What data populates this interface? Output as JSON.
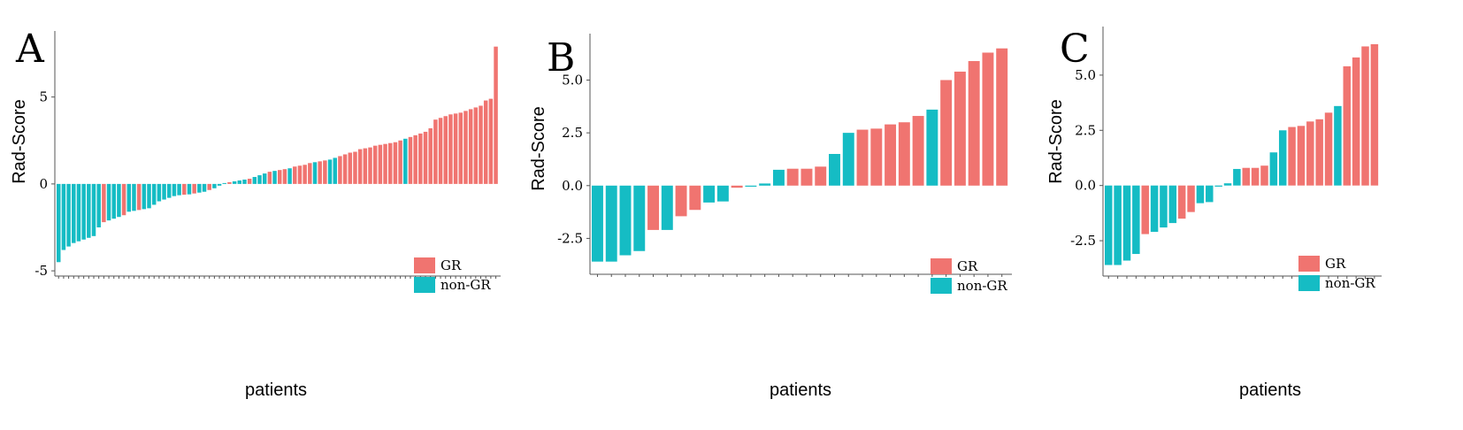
{
  "colors": {
    "GR": "#f07470",
    "non-GR": "#15bcc4"
  },
  "chart_data": [
    {
      "panel": "A",
      "type": "bar",
      "ylabel": "Rad-Score",
      "xlabel": "patients",
      "ylim": [
        -5.3,
        8.8
      ],
      "yticks": [
        -5,
        0,
        5
      ],
      "ytick_labels": [
        "-5",
        "0",
        "5"
      ],
      "legend": [
        "GR",
        "non-GR"
      ],
      "legend_position": "right",
      "values": [
        -4.5,
        -3.8,
        -3.6,
        -3.4,
        -3.3,
        -3.2,
        -3.1,
        -3.0,
        -2.5,
        -2.2,
        -2.1,
        -2.0,
        -1.9,
        -1.8,
        -1.6,
        -1.55,
        -1.5,
        -1.45,
        -1.4,
        -1.2,
        -1.0,
        -0.9,
        -0.8,
        -0.7,
        -0.65,
        -0.62,
        -0.6,
        -0.55,
        -0.5,
        -0.45,
        -0.35,
        -0.25,
        -0.1,
        0.05,
        0.1,
        0.15,
        0.2,
        0.25,
        0.3,
        0.4,
        0.5,
        0.6,
        0.7,
        0.75,
        0.8,
        0.85,
        0.9,
        1.0,
        1.05,
        1.1,
        1.2,
        1.25,
        1.3,
        1.35,
        1.4,
        1.5,
        1.6,
        1.7,
        1.8,
        1.85,
        2.0,
        2.05,
        2.1,
        2.2,
        2.25,
        2.3,
        2.35,
        2.4,
        2.5,
        2.6,
        2.7,
        2.8,
        2.9,
        3.0,
        3.2,
        3.7,
        3.8,
        3.9,
        4.0,
        4.05,
        4.1,
        4.2,
        4.3,
        4.4,
        4.5,
        4.8,
        4.9,
        7.9
      ],
      "groups": [
        "non-GR",
        "non-GR",
        "non-GR",
        "non-GR",
        "non-GR",
        "non-GR",
        "non-GR",
        "non-GR",
        "non-GR",
        "GR",
        "non-GR",
        "non-GR",
        "non-GR",
        "GR",
        "non-GR",
        "non-GR",
        "GR",
        "non-GR",
        "non-GR",
        "non-GR",
        "non-GR",
        "non-GR",
        "non-GR",
        "non-GR",
        "non-GR",
        "GR",
        "non-GR",
        "GR",
        "non-GR",
        "non-GR",
        "GR",
        "non-GR",
        "non-GR",
        "non-GR",
        "GR",
        "non-GR",
        "non-GR",
        "non-GR",
        "GR",
        "non-GR",
        "non-GR",
        "non-GR",
        "GR",
        "non-GR",
        "GR",
        "GR",
        "non-GR",
        "GR",
        "GR",
        "GR",
        "GR",
        "non-GR",
        "GR",
        "GR",
        "non-GR",
        "non-GR",
        "GR",
        "GR",
        "GR",
        "GR",
        "GR",
        "GR",
        "GR",
        "GR",
        "GR",
        "GR",
        "GR",
        "GR",
        "GR",
        "non-GR",
        "GR",
        "GR",
        "GR",
        "GR",
        "GR",
        "GR",
        "GR",
        "GR",
        "GR",
        "GR",
        "GR",
        "GR",
        "GR",
        "GR",
        "GR",
        "GR",
        "GR",
        "GR"
      ]
    },
    {
      "panel": "B",
      "type": "bar",
      "ylabel": "Rad-Score",
      "xlabel": "patients",
      "ylim": [
        -4.2,
        7.2
      ],
      "yticks": [
        -2.5,
        0.0,
        2.5,
        5.0
      ],
      "ytick_labels": [
        "-2.5",
        "0.0",
        "2.5",
        "5.0"
      ],
      "legend": [
        "GR",
        "non-GR"
      ],
      "legend_position": "right",
      "values": [
        -3.6,
        -3.6,
        -3.3,
        -3.1,
        -2.1,
        -2.1,
        -1.45,
        -1.15,
        -0.8,
        -0.75,
        -0.1,
        -0.05,
        0.1,
        0.75,
        0.8,
        0.8,
        0.9,
        1.5,
        2.5,
        2.65,
        2.7,
        2.9,
        3.0,
        3.3,
        3.6,
        5.0,
        5.4,
        5.9,
        6.3,
        6.5
      ],
      "groups": [
        "non-GR",
        "non-GR",
        "non-GR",
        "non-GR",
        "GR",
        "non-GR",
        "GR",
        "GR",
        "non-GR",
        "non-GR",
        "GR",
        "non-GR",
        "non-GR",
        "non-GR",
        "GR",
        "GR",
        "GR",
        "non-GR",
        "non-GR",
        "GR",
        "GR",
        "GR",
        "GR",
        "GR",
        "non-GR",
        "GR",
        "GR",
        "GR",
        "GR",
        "GR"
      ]
    },
    {
      "panel": "C",
      "type": "bar",
      "ylabel": "Rad-Score",
      "xlabel": "patients",
      "ylim": [
        -4.1,
        7.2
      ],
      "yticks": [
        -2.5,
        0.0,
        2.5,
        5.0
      ],
      "ytick_labels": [
        "-2.5",
        "0.0",
        "2.5",
        "5.0"
      ],
      "legend": [
        "GR",
        "non-GR"
      ],
      "legend_position": "right",
      "values": [
        -3.6,
        -3.6,
        -3.4,
        -3.1,
        -2.2,
        -2.1,
        -1.9,
        -1.7,
        -1.5,
        -1.2,
        -0.8,
        -0.75,
        -0.05,
        0.1,
        0.75,
        0.8,
        0.8,
        0.9,
        1.5,
        2.5,
        2.65,
        2.7,
        2.9,
        3.0,
        3.3,
        3.6,
        5.4,
        5.8,
        6.3,
        6.4
      ],
      "groups": [
        "non-GR",
        "non-GR",
        "non-GR",
        "non-GR",
        "GR",
        "non-GR",
        "non-GR",
        "non-GR",
        "GR",
        "GR",
        "non-GR",
        "non-GR",
        "non-GR",
        "non-GR",
        "non-GR",
        "GR",
        "GR",
        "GR",
        "non-GR",
        "non-GR",
        "GR",
        "GR",
        "GR",
        "GR",
        "GR",
        "non-GR",
        "GR",
        "GR",
        "GR",
        "GR"
      ]
    }
  ]
}
